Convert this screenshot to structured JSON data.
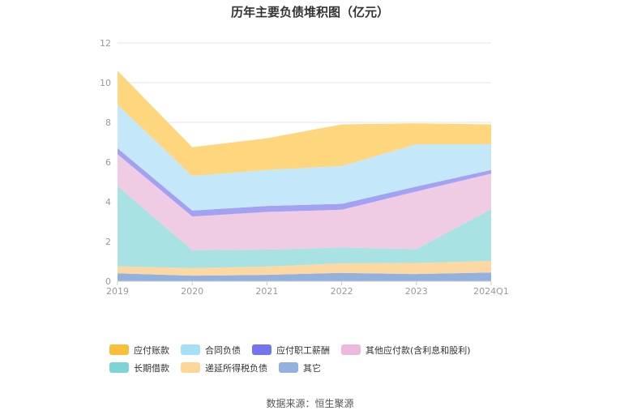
{
  "chart_data": {
    "type": "area",
    "stacked": true,
    "title": "历年主要负债堆积图（亿元）",
    "categories": [
      "2019",
      "2020",
      "2021",
      "2022",
      "2023",
      "2024Q1"
    ],
    "ylim": [
      0,
      12
    ],
    "yticks": [
      "0",
      "2",
      "4",
      "6",
      "8",
      "10",
      "12"
    ],
    "grid": true,
    "legend_position": "bottom",
    "series": [
      {
        "name": "其它",
        "color": "#93b1de",
        "values": [
          0.4,
          0.28,
          0.32,
          0.42,
          0.36,
          0.44
        ]
      },
      {
        "name": "递延所得税负债",
        "color": "#fdd8a2",
        "values": [
          0.35,
          0.38,
          0.42,
          0.48,
          0.56,
          0.58
        ]
      },
      {
        "name": "长期借款",
        "color": "#a8e2e2",
        "values": [
          4.05,
          0.9,
          0.85,
          0.8,
          0.7,
          2.6
        ]
      },
      {
        "name": "其他应付款(含利息和股利)",
        "color": "#f0cce4",
        "values": [
          1.6,
          1.7,
          1.9,
          1.9,
          2.9,
          1.8
        ]
      },
      {
        "name": "应付职工薪酬",
        "color": "#a3a1f1",
        "values": [
          0.3,
          0.3,
          0.3,
          0.3,
          0.25,
          0.18
        ]
      },
      {
        "name": "合同负债",
        "color": "#c4e8fa",
        "values": [
          2.2,
          1.74,
          1.81,
          1.9,
          2.13,
          1.3
        ]
      },
      {
        "name": "应付账款",
        "color": "#fdd67e",
        "values": [
          1.7,
          1.45,
          1.6,
          2.1,
          1.05,
          1.0
        ]
      }
    ],
    "legend_order": [
      "应付账款",
      "合同负债",
      "应付职工薪酬",
      "其他应付款(含利息和股利)",
      "长期借款",
      "递延所得税负债",
      "其它"
    ],
    "legend_colors": {
      "应付账款": "#fabf3a",
      "合同负债": "#a7dff8",
      "应付职工薪酬": "#7474ee",
      "其他应付款(含利息和股利)": "#ecb8dc",
      "长期借款": "#7ed4d4",
      "递延所得税负债": "#fdd69a",
      "其它": "#93b1de"
    }
  },
  "source": "数据来源：恒生聚源"
}
